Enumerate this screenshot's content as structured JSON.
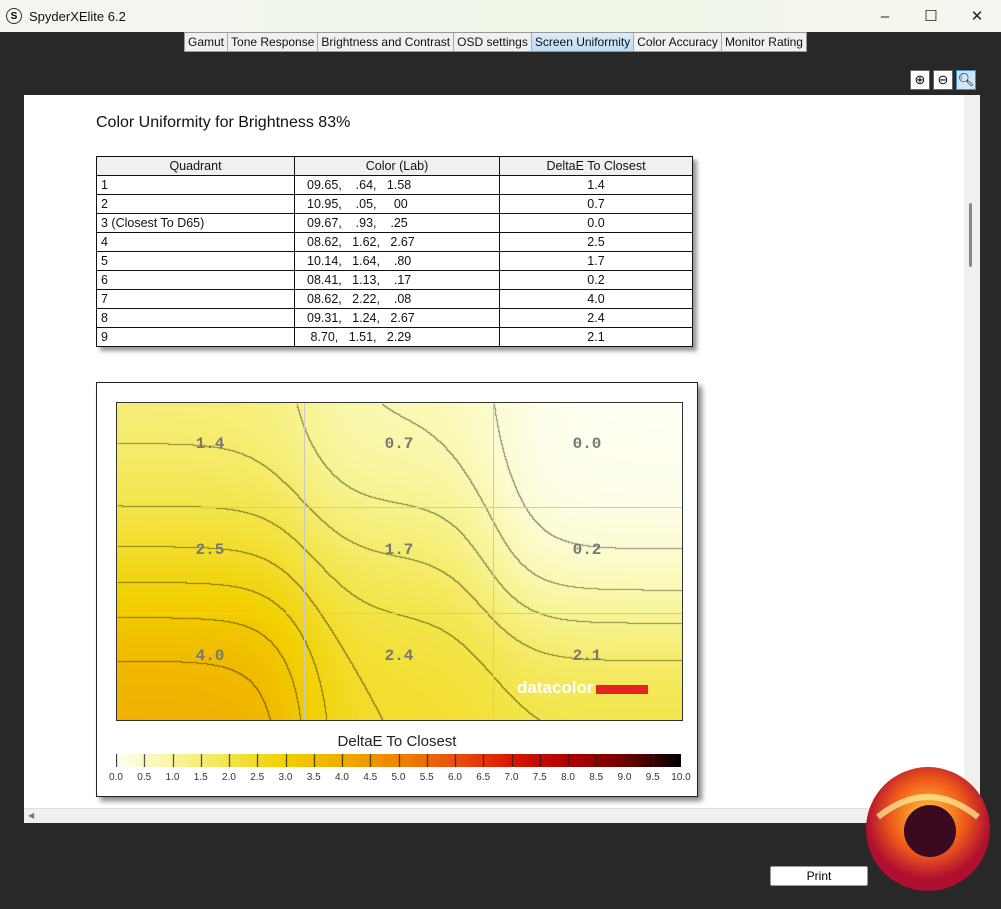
{
  "window": {
    "title": "SpyderXElite 6.2",
    "app_icon": "S",
    "controls": {
      "minimize": "–",
      "maximize": "☐",
      "close": "✕"
    }
  },
  "tabs": [
    {
      "label": "Gamut"
    },
    {
      "label": "Tone Response"
    },
    {
      "label": "Brightness and Contrast"
    },
    {
      "label": "OSD settings"
    },
    {
      "label": "Screen Uniformity",
      "active": true
    },
    {
      "label": "Color Accuracy"
    },
    {
      "label": "Monitor Rating"
    }
  ],
  "zoom_tools": [
    "zoom-in-icon",
    "zoom-out-icon",
    "zoom-fit-icon"
  ],
  "report": {
    "title": "Color Uniformity for Brightness 83%",
    "table": {
      "headers": [
        "Quadrant",
        "Color (Lab)",
        "DeltaE To Closest"
      ],
      "rows": [
        [
          "1",
          "09.65,    .64,   1.58",
          "1.4"
        ],
        [
          "2",
          "10.95,    .05,     00",
          "0.7"
        ],
        [
          "3 (Closest To D65)",
          "09.67,    .93,    .25",
          "0.0"
        ],
        [
          "4",
          "08.62,   1.62,   2.67",
          "2.5"
        ],
        [
          "5",
          "10.14,   1.64,    .80",
          "1.7"
        ],
        [
          "6",
          "08.41,   1.13,    .17",
          "0.2"
        ],
        [
          "7",
          "08.62,   2.22,    .08",
          "4.0"
        ],
        [
          "8",
          "09.31,   1.24,   2.67",
          "2.4"
        ],
        [
          "9",
          " 8.70,   1.51,   2.29",
          "2.1"
        ]
      ]
    },
    "heatmap_labels": [
      "1.4",
      "0.7",
      "0.0",
      "2.5",
      "1.7",
      "0.2",
      "4.0",
      "2.4",
      "2.1"
    ],
    "brand": "datacolor",
    "colorbar_title": "DeltaE To Closest",
    "colorbar_ticks": [
      "0.0",
      "0.5",
      "1.0",
      "1.5",
      "2.0",
      "2.5",
      "3.0",
      "3.5",
      "4.0",
      "4.5",
      "5.0",
      "5.5",
      "6.0",
      "6.5",
      "7.0",
      "7.5",
      "8.0",
      "8.5",
      "9.0",
      "9.5",
      "10.0"
    ]
  },
  "chart_data": {
    "type": "heatmap",
    "grid": [
      [
        1.4,
        0.7,
        0.0
      ],
      [
        2.5,
        1.7,
        0.2
      ],
      [
        4.0,
        2.4,
        2.1
      ]
    ],
    "range": [
      0,
      10
    ],
    "colorbar_title": "DeltaE To Closest",
    "colormap": [
      "#fffff4",
      "#f8f6a0",
      "#f3e54a",
      "#f2d000",
      "#f0ac00",
      "#ee8400",
      "#ea5010",
      "#d81800",
      "#b00000",
      "#700000",
      "#000000"
    ]
  },
  "print_label": "Print"
}
